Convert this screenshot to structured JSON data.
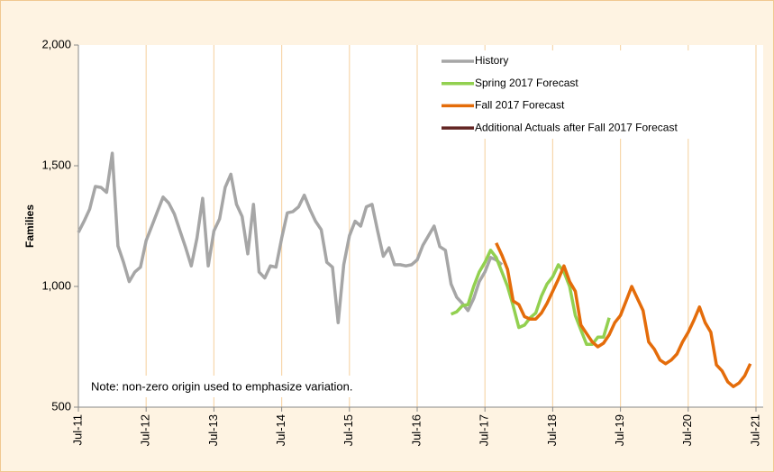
{
  "chart_data": {
    "type": "line",
    "y_label": "Families",
    "annotation": "Note: non-zero origin used to emphasize variation.",
    "categories": [
      "Jul-11",
      null,
      null,
      null,
      null,
      null,
      null,
      null,
      null,
      null,
      null,
      null,
      "Jul-12",
      null,
      null,
      null,
      null,
      null,
      null,
      null,
      null,
      null,
      null,
      null,
      "Jul-13",
      null,
      null,
      null,
      null,
      null,
      null,
      null,
      null,
      null,
      null,
      null,
      "Jul-14",
      null,
      null,
      null,
      null,
      null,
      null,
      null,
      null,
      null,
      null,
      null,
      "Jul-15",
      null,
      null,
      null,
      null,
      null,
      null,
      null,
      null,
      null,
      null,
      null,
      "Jul-16",
      null,
      null,
      null,
      null,
      null,
      null,
      null,
      null,
      null,
      null,
      null,
      "Jul-17",
      null,
      null,
      null,
      null,
      null,
      null,
      null,
      null,
      null,
      null,
      null,
      "Jul-18",
      null,
      null,
      null,
      null,
      null,
      null,
      null,
      null,
      null,
      null,
      null,
      "Jul-19",
      null,
      null,
      null,
      null,
      null,
      null,
      null,
      null,
      null,
      null,
      null,
      "Jul-20",
      null,
      null,
      null,
      null,
      null,
      null,
      null,
      null,
      null,
      null,
      null,
      "Jul-21"
    ],
    "series": [
      {
        "name": "History",
        "color": "#a6a6a6",
        "values": [
          1224,
          1270,
          1320,
          1414,
          1410,
          1390,
          1552,
          1168,
          1100,
          1020,
          1060,
          1080,
          1190,
          1250,
          1310,
          1370,
          1345,
          1300,
          1230,
          1160,
          1085,
          1200,
          1365,
          1085,
          1230,
          1280,
          1410,
          1465,
          1340,
          1290,
          1135,
          1340,
          1060,
          1035,
          1085,
          1080,
          1200,
          1305,
          1310,
          1330,
          1378,
          1320,
          1270,
          1235,
          1100,
          1080,
          850,
          1090,
          1210,
          1270,
          1250,
          1330,
          1340,
          1230,
          1125,
          1160,
          1090,
          1090,
          1085,
          1090,
          1110,
          1170,
          1210,
          1250,
          1165,
          1150,
          1010,
          955,
          930,
          900,
          950,
          1020,
          1060,
          1120,
          1110,
          1090,
          null,
          null,
          null,
          null,
          null,
          null,
          null,
          null,
          null,
          null,
          null,
          null,
          null,
          null,
          null,
          null,
          null,
          null,
          null,
          null,
          null,
          null,
          null,
          null,
          null,
          null,
          null,
          null,
          null,
          null,
          null,
          null,
          null,
          null,
          null,
          null,
          null,
          null,
          null,
          null,
          null,
          null,
          null,
          null,
          null
        ]
      },
      {
        "name": "Spring 2017 Forecast",
        "color": "#92d050",
        "values": [
          null,
          null,
          null,
          null,
          null,
          null,
          null,
          null,
          null,
          null,
          null,
          null,
          null,
          null,
          null,
          null,
          null,
          null,
          null,
          null,
          null,
          null,
          null,
          null,
          null,
          null,
          null,
          null,
          null,
          null,
          null,
          null,
          null,
          null,
          null,
          null,
          null,
          null,
          null,
          null,
          null,
          null,
          null,
          null,
          null,
          null,
          null,
          null,
          null,
          null,
          null,
          null,
          null,
          null,
          null,
          null,
          null,
          null,
          null,
          null,
          null,
          null,
          null,
          null,
          null,
          null,
          885,
          895,
          920,
          925,
          1000,
          1060,
          1100,
          1150,
          1120,
          1060,
          1000,
          920,
          830,
          840,
          870,
          890,
          960,
          1010,
          1040,
          1090,
          1060,
          1000,
          880,
          820,
          760,
          760,
          790,
          790,
          870,
          null,
          null,
          null,
          null,
          null,
          null,
          null,
          null,
          null,
          null,
          null,
          null,
          null,
          null,
          null,
          null,
          null,
          null,
          null,
          null,
          null,
          null,
          null,
          null,
          null,
          null
        ]
      },
      {
        "name": "Fall 2017 Forecast",
        "color": "#e46c0a",
        "values": [
          null,
          null,
          null,
          null,
          null,
          null,
          null,
          null,
          null,
          null,
          null,
          null,
          null,
          null,
          null,
          null,
          null,
          null,
          null,
          null,
          null,
          null,
          null,
          null,
          null,
          null,
          null,
          null,
          null,
          null,
          null,
          null,
          null,
          null,
          null,
          null,
          null,
          null,
          null,
          null,
          null,
          null,
          null,
          null,
          null,
          null,
          null,
          null,
          null,
          null,
          null,
          null,
          null,
          null,
          null,
          null,
          null,
          null,
          null,
          null,
          null,
          null,
          null,
          null,
          null,
          null,
          null,
          null,
          null,
          null,
          null,
          null,
          null,
          null,
          1180,
          1130,
          1070,
          940,
          925,
          875,
          865,
          865,
          890,
          930,
          980,
          1030,
          1085,
          1020,
          980,
          840,
          805,
          770,
          750,
          765,
          800,
          850,
          880,
          940,
          1000,
          950,
          900,
          770,
          740,
          695,
          680,
          695,
          720,
          770,
          810,
          860,
          915,
          850,
          810,
          675,
          650,
          605,
          585,
          600,
          630,
          680,
          null
        ]
      },
      {
        "name": "Additional Actuals after Fall 2017 Forecast",
        "color": "#632523",
        "values": [
          null,
          null,
          null,
          null,
          null,
          null,
          null,
          null,
          null,
          null,
          null,
          null,
          null,
          null,
          null,
          null,
          null,
          null,
          null,
          null,
          null,
          null,
          null,
          null,
          null,
          null,
          null,
          null,
          null,
          null,
          null,
          null,
          null,
          null,
          null,
          null,
          null,
          null,
          null,
          null,
          null,
          null,
          null,
          null,
          null,
          null,
          null,
          null,
          null,
          null,
          null,
          null,
          null,
          null,
          null,
          null,
          null,
          null,
          null,
          null,
          null,
          null,
          null,
          null,
          null,
          null,
          null,
          null,
          null,
          null,
          null,
          null,
          null,
          null,
          null,
          null,
          null,
          null,
          null,
          null,
          null,
          null,
          null,
          null,
          null,
          null,
          null,
          null,
          null,
          null,
          null,
          null,
          null,
          null,
          null,
          null,
          null,
          null,
          null,
          null,
          null,
          null,
          null,
          null,
          null,
          null,
          null,
          null,
          null,
          null,
          null,
          null,
          null,
          null,
          null,
          null,
          null,
          null,
          null,
          null,
          null
        ]
      }
    ],
    "ylim": [
      500,
      2000
    ],
    "yticks": [
      500,
      {
        "value": 1000,
        "label": "1,000"
      },
      {
        "value": 1500,
        "label": "1,500"
      },
      {
        "value": 2000,
        "label": "2,000"
      }
    ],
    "grid": true
  }
}
